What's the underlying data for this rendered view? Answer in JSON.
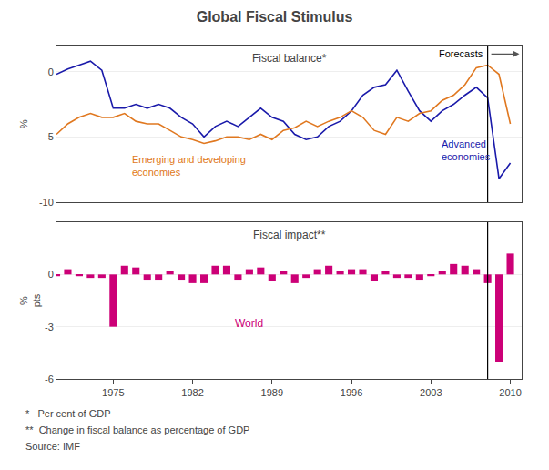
{
  "title": "Global Fiscal Stimulus",
  "annotations": [
    "*   Per cent of GDP",
    "**  Change in fiscal balance as percentage of GDP",
    "Source: IMF"
  ],
  "forecast": {
    "label": "Forecasts",
    "x": 2008
  },
  "chart_data": [
    {
      "type": "line",
      "title": "Fiscal balance*",
      "ylabel": "%",
      "x": [
        1970,
        1971,
        1972,
        1973,
        1974,
        1975,
        1976,
        1977,
        1978,
        1979,
        1980,
        1981,
        1982,
        1983,
        1984,
        1985,
        1986,
        1987,
        1988,
        1989,
        1990,
        1991,
        1992,
        1993,
        1994,
        1995,
        1996,
        1997,
        1998,
        1999,
        2000,
        2001,
        2002,
        2003,
        2004,
        2005,
        2006,
        2007,
        2008,
        2009,
        2010
      ],
      "series": [
        {
          "name": "Advanced\neconomies",
          "color": "#1a1aaa",
          "values": [
            -0.2,
            0.2,
            0.5,
            0.8,
            0.1,
            -2.8,
            -2.8,
            -2.5,
            -2.8,
            -2.5,
            -2.8,
            -3.5,
            -4.0,
            -5.0,
            -4.2,
            -3.8,
            -4.2,
            -3.5,
            -2.8,
            -3.5,
            -3.8,
            -4.8,
            -5.2,
            -5.0,
            -4.2,
            -3.8,
            -3.0,
            -1.8,
            -1.2,
            -1.0,
            0.1,
            -1.5,
            -3.0,
            -3.8,
            -3.0,
            -2.5,
            -1.8,
            -1.2,
            -2.0,
            -8.2,
            -7.0
          ]
        },
        {
          "name": "Emerging and developing\neconomies",
          "color": "#e07820",
          "values": [
            -4.8,
            -4.0,
            -3.5,
            -3.2,
            -3.5,
            -3.5,
            -3.2,
            -3.8,
            -4.0,
            -4.0,
            -4.5,
            -5.0,
            -5.2,
            -5.5,
            -5.3,
            -5.0,
            -5.0,
            -5.2,
            -4.8,
            -5.2,
            -4.5,
            -4.3,
            -3.8,
            -4.2,
            -3.8,
            -3.5,
            -3.0,
            -3.5,
            -4.5,
            -4.8,
            -3.5,
            -3.8,
            -3.2,
            -3.0,
            -2.2,
            -1.8,
            -1.0,
            0.3,
            0.5,
            -0.2,
            -4.0
          ]
        }
      ],
      "xlim": [
        1970,
        2011
      ],
      "ylim": [
        -10,
        2
      ],
      "yticks": [
        -10,
        -5,
        0
      ],
      "tick_labels": "y",
      "grid": true
    },
    {
      "type": "bar",
      "title": "Fiscal impact**",
      "ylabel": "%\npts",
      "x": [
        1970,
        1971,
        1972,
        1973,
        1974,
        1975,
        1976,
        1977,
        1978,
        1979,
        1980,
        1981,
        1982,
        1983,
        1984,
        1985,
        1986,
        1987,
        1988,
        1989,
        1990,
        1991,
        1992,
        1993,
        1994,
        1995,
        1996,
        1997,
        1998,
        1999,
        2000,
        2001,
        2002,
        2003,
        2004,
        2005,
        2006,
        2007,
        2008,
        2009,
        2010
      ],
      "series": [
        {
          "name": "World",
          "color": "#cc0077",
          "values": [
            -0.1,
            0.3,
            -0.1,
            -0.2,
            -0.2,
            -3.0,
            0.5,
            0.4,
            -0.3,
            -0.3,
            0.2,
            -0.3,
            -0.5,
            -0.5,
            0.5,
            0.5,
            -0.3,
            0.3,
            0.4,
            -0.4,
            0.2,
            -0.5,
            -0.2,
            0.3,
            0.5,
            0.2,
            0.3,
            0.3,
            -0.4,
            0.2,
            -0.2,
            -0.2,
            -0.3,
            -0.1,
            0.2,
            0.6,
            0.5,
            0.3,
            -0.5,
            -5.0,
            1.2
          ]
        }
      ],
      "xlim": [
        1970,
        2011
      ],
      "xticks": [
        1975,
        1982,
        1989,
        1996,
        2003,
        2010
      ],
      "ylim": [
        -6,
        3
      ],
      "yticks": [
        -6,
        -3,
        0
      ],
      "grid": true
    }
  ]
}
